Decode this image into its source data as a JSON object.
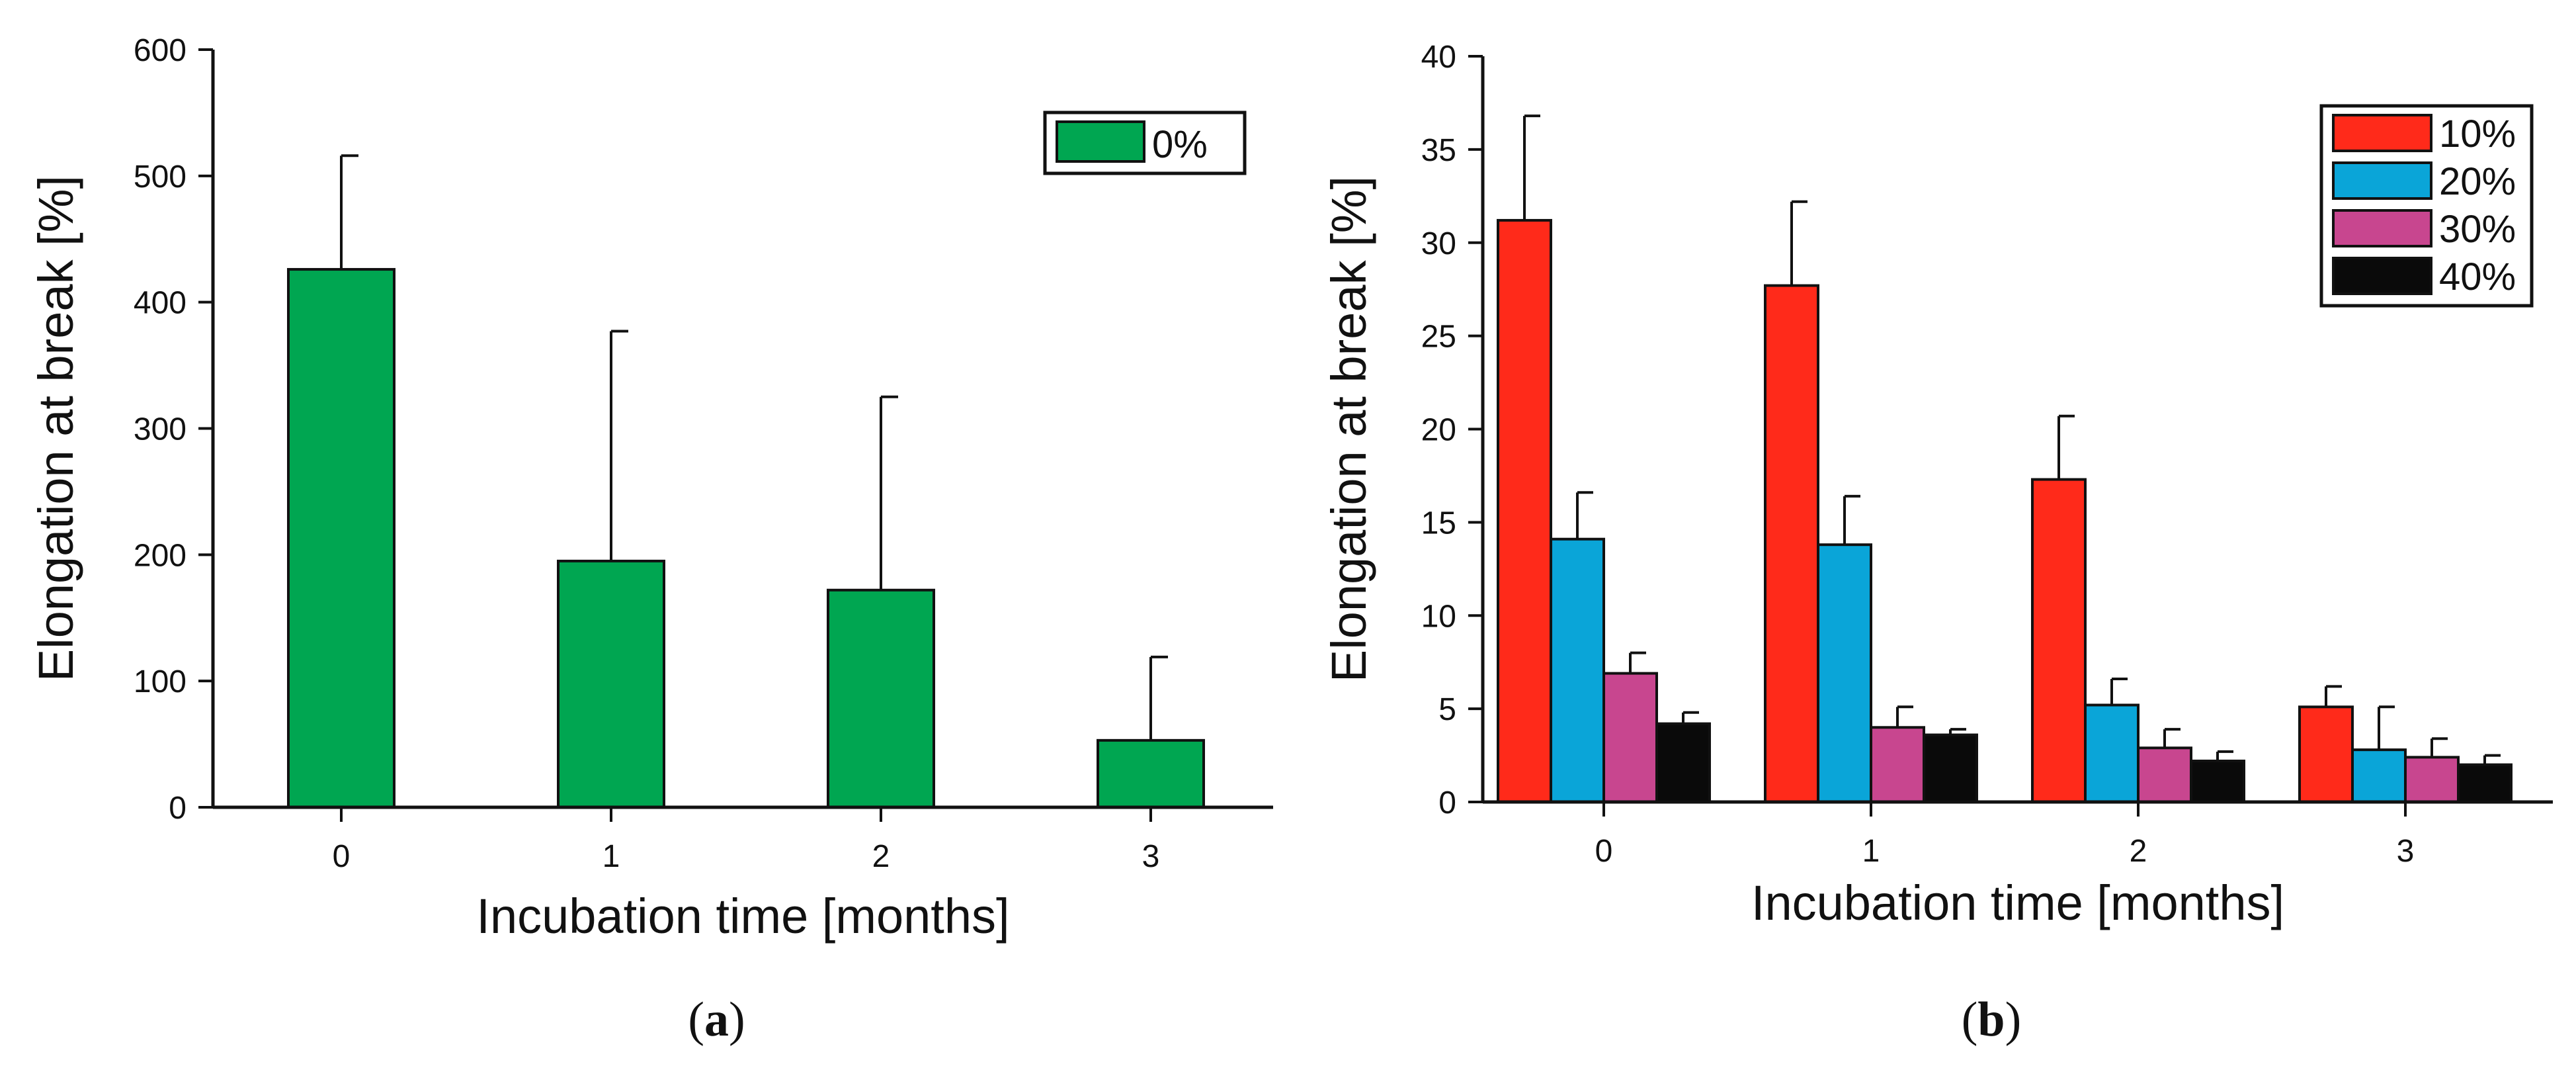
{
  "chart_data": [
    {
      "panel": "a",
      "panel_label": {
        "open": "(",
        "letter": "a",
        "close": ")"
      },
      "type": "bar",
      "xlabel": "Incubation time [months]",
      "ylabel": "Elongation at break [%]",
      "ylim": [
        0,
        600
      ],
      "yticks": [
        0,
        100,
        200,
        300,
        400,
        500,
        600
      ],
      "categories": [
        "0",
        "1",
        "2",
        "3"
      ],
      "grid": false,
      "legend_position": "top-right",
      "series": [
        {
          "name": "0%",
          "color": "#00a651",
          "values": [
            426,
            195,
            172,
            53
          ],
          "errors": [
            90,
            182,
            153,
            66
          ]
        }
      ]
    },
    {
      "panel": "b",
      "panel_label": {
        "open": "(",
        "letter": "b",
        "close": ")"
      },
      "type": "bar",
      "xlabel": "Incubation time [months]",
      "ylabel": "Elongation at break [%]",
      "ylim": [
        0,
        40
      ],
      "yticks": [
        0,
        5,
        10,
        15,
        20,
        25,
        30,
        35,
        40
      ],
      "categories": [
        "0",
        "1",
        "2",
        "3"
      ],
      "grid": false,
      "legend_position": "top-right",
      "series": [
        {
          "name": "10%",
          "color": "#ff2a1a",
          "values": [
            31.2,
            27.7,
            17.3,
            5.1
          ],
          "errors": [
            5.6,
            4.5,
            3.4,
            1.1
          ]
        },
        {
          "name": "20%",
          "color": "#0aa5d8",
          "values": [
            14.1,
            13.8,
            5.2,
            2.8
          ],
          "errors": [
            2.5,
            2.6,
            1.4,
            2.3
          ]
        },
        {
          "name": "30%",
          "color": "#c8468f",
          "values": [
            6.9,
            4.0,
            2.9,
            2.4
          ],
          "errors": [
            1.1,
            1.1,
            1.0,
            1.0
          ]
        },
        {
          "name": "40%",
          "color": "#0a0a0a",
          "values": [
            4.2,
            3.6,
            2.2,
            2.0
          ],
          "errors": [
            0.6,
            0.3,
            0.5,
            0.5
          ]
        }
      ]
    }
  ]
}
